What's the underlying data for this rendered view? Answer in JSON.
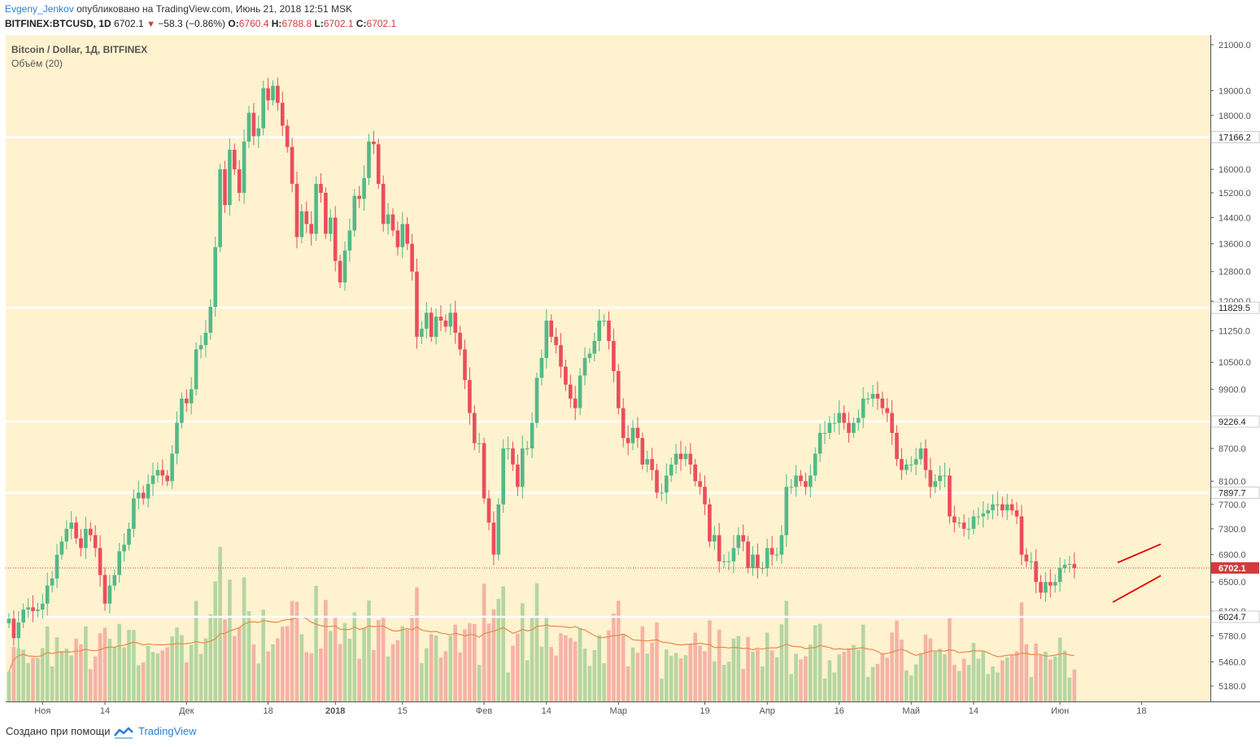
{
  "header": {
    "author": "Evgeny_Jenkov",
    "published": "опубликовано на TradingView.com, Июнь 21, 2018 12:51 MSK",
    "symbol": "BITFINEX:BTCUSD, 1D",
    "last": "6702.1",
    "change": "−58.3 (−0.86%)",
    "open_label": "O:",
    "open": "6760.4",
    "high_label": "H:",
    "high": "6788.8",
    "low_label": "L:",
    "low": "6702.1",
    "close_label": "C:",
    "close": "6702.1"
  },
  "legend": {
    "title": "Bitcoin / Dollar, 1Д, BITFINEX",
    "volume": "Объём (20)"
  },
  "footer": {
    "made_with": "Создано при помощи",
    "brand": "TradingView"
  },
  "colors": {
    "background": "#fff2cf",
    "up": "#53b987",
    "down": "#eb4d5c",
    "vol_up": "#b5d6a0",
    "vol_down": "#f4b3a6",
    "vol_ma": "#e8894a",
    "trend": "#e00000",
    "hline": "#ffffff",
    "price_line": "#d03c3c"
  },
  "chart_data": {
    "type": "candlestick",
    "price_scale": "log",
    "y_ticks": [
      21000.0,
      19000.0,
      18000.0,
      16000.0,
      15200.0,
      14400.0,
      13600.0,
      12800.0,
      12000.0,
      11250.0,
      10500.0,
      9900.0,
      8700.0,
      8100.0,
      7700.0,
      7300.0,
      6900.0,
      6500.0,
      6100.0,
      5780.0,
      5460.0,
      5180.0
    ],
    "x_labels": [
      "Ноя",
      "14",
      "Дек",
      "18",
      "2018",
      "15",
      "Фев",
      "14",
      "Мар",
      "19",
      "Апр",
      "16",
      "Май",
      "14",
      "Июн",
      "18"
    ],
    "x_label_dates": [
      "2017-11-01",
      "2017-11-14",
      "2017-12-01",
      "2017-12-18",
      "2018-01-01",
      "2018-01-15",
      "2018-02-01",
      "2018-02-14",
      "2018-03-01",
      "2018-03-19",
      "2018-04-01",
      "2018-04-16",
      "2018-05-01",
      "2018-05-14",
      "2018-06-01",
      "2018-06-18"
    ],
    "horizontal_levels": [
      17166.2,
      11829.5,
      9226.4,
      7897.7,
      6024.7
    ],
    "last_price": 6702.1,
    "trend_channel": [
      {
        "from": [
          "2018-06-13",
          6780
        ],
        "to": [
          "2018-06-22",
          7060
        ]
      },
      {
        "from": [
          "2018-06-12",
          6220
        ],
        "to": [
          "2018-06-22",
          6590
        ]
      }
    ],
    "start_date": "2017-10-25",
    "closes": [
      6000,
      5750,
      5950,
      6120,
      6150,
      6100,
      6120,
      6200,
      6450,
      6550,
      6900,
      7100,
      7300,
      7400,
      7150,
      7000,
      7300,
      7200,
      7000,
      6600,
      6200,
      6450,
      6600,
      6950,
      7050,
      7300,
      7800,
      7900,
      7800,
      8050,
      8200,
      8300,
      8200,
      8100,
      8600,
      9200,
      9700,
      9600,
      9900,
      10800,
      10900,
      11200,
      11850,
      13500,
      16000,
      14800,
      16700,
      16000,
      15200,
      17000,
      18100,
      17200,
      17500,
      19100,
      18600,
      19200,
      18500,
      17600,
      16800,
      15500,
      13800,
      14600,
      14200,
      13900,
      15500,
      15200,
      13900,
      14400,
      13100,
      12500,
      13400,
      14000,
      15100,
      15000,
      15700,
      17000,
      16900,
      15500,
      14200,
      14500,
      14000,
      13500,
      14200,
      13600,
      12800,
      11100,
      11300,
      11700,
      11100,
      11600,
      11500,
      11350,
      11700,
      11200,
      10800,
      10100,
      9400,
      8800,
      8800,
      7800,
      7400,
      6900,
      7700,
      8700,
      8700,
      8400,
      8000,
      8700,
      8700,
      9200,
      10150,
      10600,
      11500,
      11100,
      10900,
      10400,
      10000,
      9700,
      9500,
      10200,
      10600,
      10700,
      11000,
      11500,
      11500,
      11000,
      10300,
      9500,
      8900,
      8800,
      9100,
      8900,
      8400,
      8500,
      8300,
      7900,
      7900,
      8200,
      8400,
      8600,
      8500,
      8600,
      8400,
      8100,
      8000,
      7700,
      7100,
      7200,
      6800,
      6800,
      6800,
      7000,
      7200,
      7100,
      6700,
      6900,
      6700,
      6700,
      7000,
      6900,
      6900,
      7200,
      8000,
      8000,
      8200,
      8100,
      8000,
      8200,
      8600,
      9000,
      9000,
      9200,
      9200,
      9400,
      9200,
      9000,
      9200,
      9300,
      9700,
      9700,
      9800,
      9700,
      9500,
      9400,
      9000,
      8500,
      8300,
      8400,
      8400,
      8500,
      8700,
      8300,
      8000,
      8100,
      8200,
      8200,
      7500,
      7400,
      7400,
      7300,
      7300,
      7500,
      7500,
      7550,
      7600,
      7700,
      7700,
      7600,
      7700,
      7600,
      7500,
      6900,
      6800,
      6800,
      6500,
      6350,
      6500,
      6450,
      6500,
      6700,
      6750,
      6760,
      6702
    ]
  }
}
